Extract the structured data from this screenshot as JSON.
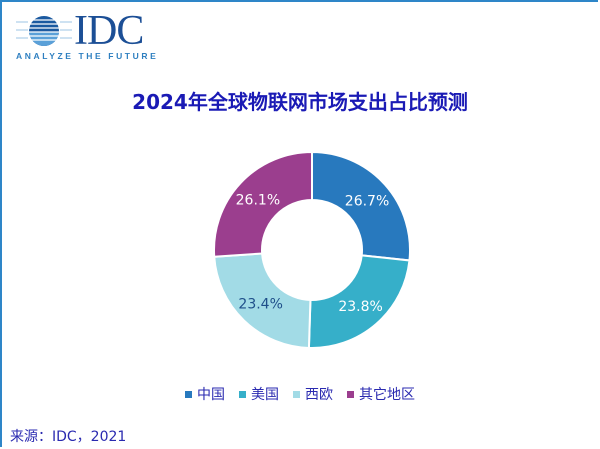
{
  "logo": {
    "name": "IDC",
    "tagline": "ANALYZE THE FUTURE"
  },
  "chart_data": {
    "type": "pie",
    "subtype": "donut",
    "title": "2024年全球物联网市场支出占比预测",
    "categories": [
      "中国",
      "美国",
      "西欧",
      "其它地区"
    ],
    "values": [
      26.7,
      23.8,
      23.4,
      26.1
    ],
    "labels": [
      "26.7%",
      "23.8%",
      "23.4%",
      "26.1%"
    ],
    "colors": [
      "#2879be",
      "#36afc9",
      "#a2dbe6",
      "#9b3e8e"
    ],
    "label_colors": [
      "#ffffff",
      "#ffffff",
      "#1f4f8a",
      "#ffffff"
    ],
    "legend_position": "bottom"
  },
  "source": "来源：IDC，2021"
}
